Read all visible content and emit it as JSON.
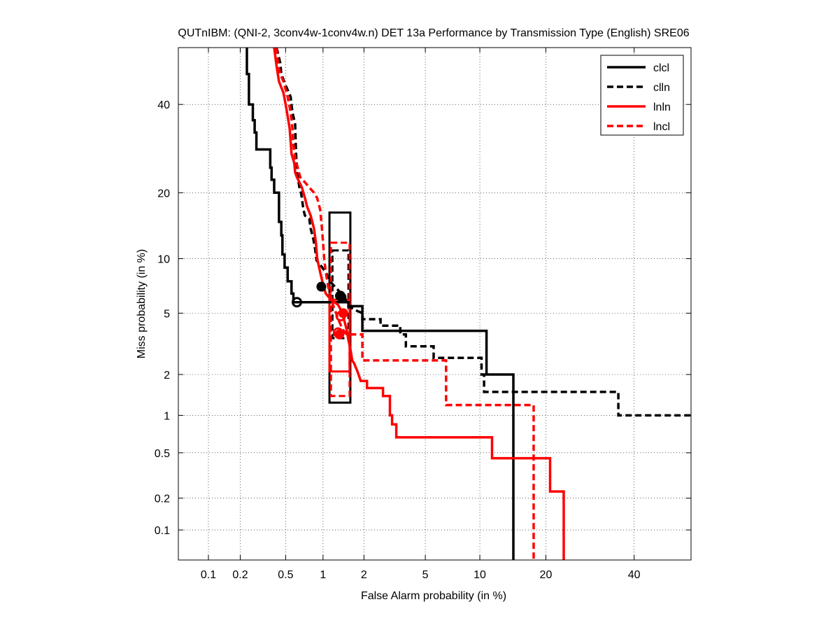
{
  "chart_data": {
    "type": "line",
    "subtype": "DET",
    "title": "QUTnIBM: (QNI-2, 3conv4w-1conv4w.n) DET 13a Performance by Transmission Type (English) SRE06",
    "xlabel": "False Alarm probability (in %)",
    "ylabel": "Miss probability (in %)",
    "xscale": "probit",
    "yscale": "probit",
    "xlim": [
      0.05,
      55
    ],
    "ylim": [
      0.05,
      55
    ],
    "grid": true,
    "legend_position": "top-right",
    "x_ticks": [
      {
        "v": 0.1,
        "label": "0.1"
      },
      {
        "v": 0.2,
        "label": "0.2"
      },
      {
        "v": 0.5,
        "label": "0.5"
      },
      {
        "v": 1,
        "label": "1"
      },
      {
        "v": 2,
        "label": "2"
      },
      {
        "v": 5,
        "label": "5"
      },
      {
        "v": 10,
        "label": "10"
      },
      {
        "v": 20,
        "label": "20"
      },
      {
        "v": 40,
        "label": "40"
      }
    ],
    "y_ticks": [
      {
        "v": 0.1,
        "label": "0.1"
      },
      {
        "v": 0.2,
        "label": "0.2"
      },
      {
        "v": 0.5,
        "label": "0.5"
      },
      {
        "v": 1,
        "label": "1"
      },
      {
        "v": 2,
        "label": "2"
      },
      {
        "v": 5,
        "label": "5"
      },
      {
        "v": 10,
        "label": "10"
      },
      {
        "v": 20,
        "label": "20"
      },
      {
        "v": 40,
        "label": "40"
      }
    ],
    "series": [
      {
        "name": "clcl",
        "color": "#000000",
        "dash": "solid",
        "points": [
          [
            0.23,
            55
          ],
          [
            0.23,
            48
          ],
          [
            0.24,
            48
          ],
          [
            0.24,
            40
          ],
          [
            0.26,
            40
          ],
          [
            0.26,
            36
          ],
          [
            0.27,
            36
          ],
          [
            0.27,
            33
          ],
          [
            0.28,
            33
          ],
          [
            0.28,
            29
          ],
          [
            0.37,
            29
          ],
          [
            0.37,
            25
          ],
          [
            0.38,
            25
          ],
          [
            0.38,
            22.5
          ],
          [
            0.4,
            22.5
          ],
          [
            0.4,
            20
          ],
          [
            0.44,
            20
          ],
          [
            0.44,
            15
          ],
          [
            0.46,
            15
          ],
          [
            0.46,
            13
          ],
          [
            0.47,
            13
          ],
          [
            0.47,
            10.5
          ],
          [
            0.49,
            10.5
          ],
          [
            0.49,
            9
          ],
          [
            0.52,
            9
          ],
          [
            0.52,
            7.6
          ],
          [
            0.56,
            7.6
          ],
          [
            0.56,
            6.5
          ],
          [
            0.58,
            6.5
          ],
          [
            0.58,
            5.8
          ],
          [
            1.55,
            5.8
          ],
          [
            1.55,
            5.5
          ],
          [
            1.95,
            5.5
          ],
          [
            1.95,
            3.9
          ],
          [
            10.8,
            3.9
          ],
          [
            10.8,
            2.0
          ],
          [
            14.5,
            2.0
          ],
          [
            14.5,
            0.05
          ]
        ],
        "operating_point": [
          0.62,
          5.8
        ],
        "min_dcf": [
          0.97,
          7.1
        ],
        "conf_box": {
          "x": [
            1.12,
            1.6
          ],
          "y": [
            1.25,
            16.5
          ]
        }
      },
      {
        "name": "clln",
        "color": "#000000",
        "dash": "dashed",
        "points": [
          [
            0.42,
            55
          ],
          [
            0.45,
            51
          ],
          [
            0.46,
            48
          ],
          [
            0.5,
            45
          ],
          [
            0.55,
            42
          ],
          [
            0.57,
            38
          ],
          [
            0.6,
            35
          ],
          [
            0.61,
            28
          ],
          [
            0.62,
            25
          ],
          [
            0.63,
            23
          ],
          [
            0.65,
            21
          ],
          [
            0.67,
            20
          ],
          [
            0.68,
            19
          ],
          [
            0.7,
            17
          ],
          [
            0.72,
            16
          ],
          [
            0.78,
            15.5
          ],
          [
            0.8,
            14
          ],
          [
            0.84,
            12.5
          ],
          [
            0.87,
            11
          ],
          [
            0.89,
            9.8
          ],
          [
            0.95,
            9.3
          ],
          [
            1.05,
            8.5
          ],
          [
            1.15,
            7.5
          ],
          [
            1.3,
            6.8
          ],
          [
            1.45,
            6.2
          ],
          [
            1.55,
            5.5
          ],
          [
            1.75,
            5.2
          ],
          [
            1.95,
            5.0
          ],
          [
            1.95,
            4.6
          ],
          [
            2.6,
            4.6
          ],
          [
            2.6,
            4.2
          ],
          [
            3.5,
            4.2
          ],
          [
            3.5,
            3.7
          ],
          [
            3.8,
            3.7
          ],
          [
            3.8,
            3.1
          ],
          [
            5.6,
            3.1
          ],
          [
            5.6,
            2.6
          ],
          [
            10.2,
            2.6
          ],
          [
            10.2,
            2.0
          ],
          [
            10.5,
            2.0
          ],
          [
            10.5,
            1.5
          ],
          [
            36,
            1.5
          ],
          [
            36,
            1.0
          ],
          [
            55,
            1.0
          ]
        ],
        "operating_point": [
          1.35,
          6.3
        ],
        "min_dcf": [
          1.38,
          6.2
        ],
        "conf_box": {
          "x": [
            1.18,
            1.55
          ],
          "y": [
            3.5,
            11
          ]
        }
      },
      {
        "name": "lnln",
        "color": "#ff0000",
        "dash": "solid",
        "points": [
          [
            0.4,
            55
          ],
          [
            0.42,
            50
          ],
          [
            0.44,
            46
          ],
          [
            0.48,
            43
          ],
          [
            0.5,
            40
          ],
          [
            0.52,
            37
          ],
          [
            0.54,
            34
          ],
          [
            0.55,
            31
          ],
          [
            0.56,
            28
          ],
          [
            0.59,
            26
          ],
          [
            0.6,
            24
          ],
          [
            0.62,
            23
          ],
          [
            0.65,
            22
          ],
          [
            0.68,
            21
          ],
          [
            0.72,
            19
          ],
          [
            0.75,
            17.5
          ],
          [
            0.8,
            16
          ],
          [
            0.85,
            14
          ],
          [
            0.88,
            12
          ],
          [
            0.9,
            10
          ],
          [
            0.95,
            8.5
          ],
          [
            1.0,
            7.3
          ],
          [
            1.05,
            6.5
          ],
          [
            1.15,
            6.0
          ],
          [
            1.3,
            5.6
          ],
          [
            1.4,
            5.0
          ],
          [
            1.5,
            4.0
          ],
          [
            1.55,
            3.4
          ],
          [
            1.6,
            3.0
          ],
          [
            1.65,
            2.5
          ],
          [
            1.7,
            2.4
          ],
          [
            1.8,
            2.1
          ],
          [
            1.9,
            1.8
          ],
          [
            2.1,
            1.8
          ],
          [
            2.1,
            1.6
          ],
          [
            2.7,
            1.6
          ],
          [
            2.7,
            1.4
          ],
          [
            3.0,
            1.4
          ],
          [
            3.0,
            1.0
          ],
          [
            3.1,
            1.0
          ],
          [
            3.1,
            0.85
          ],
          [
            3.3,
            0.85
          ],
          [
            3.3,
            0.67
          ],
          [
            11.5,
            0.67
          ],
          [
            11.5,
            0.45
          ],
          [
            20.8,
            0.45
          ],
          [
            20.8,
            0.23
          ],
          [
            23.5,
            0.23
          ],
          [
            23.5,
            0.05
          ]
        ],
        "operating_point": [
          1.36,
          4.8
        ],
        "min_dcf": [
          1.42,
          5.0
        ],
        "conf_box": {
          "x": [
            1.12,
            1.58
          ],
          "y": [
            2.1,
            6.0
          ]
        }
      },
      {
        "name": "lncl",
        "color": "#ff0000",
        "dash": "dashed",
        "points": [
          [
            0.42,
            55
          ],
          [
            0.43,
            51
          ],
          [
            0.45,
            48
          ],
          [
            0.48,
            46
          ],
          [
            0.52,
            42
          ],
          [
            0.55,
            38
          ],
          [
            0.57,
            34
          ],
          [
            0.58,
            30
          ],
          [
            0.6,
            27
          ],
          [
            0.63,
            25
          ],
          [
            0.66,
            23
          ],
          [
            0.72,
            22
          ],
          [
            0.78,
            21
          ],
          [
            0.85,
            20
          ],
          [
            0.9,
            19
          ],
          [
            0.95,
            17
          ],
          [
            0.98,
            14
          ],
          [
            1.0,
            12
          ],
          [
            1.02,
            10
          ],
          [
            1.05,
            8.5
          ],
          [
            1.1,
            7.0
          ],
          [
            1.2,
            5.5
          ],
          [
            1.32,
            4.5
          ],
          [
            1.4,
            4.0
          ],
          [
            1.5,
            3.7
          ],
          [
            1.75,
            3.7
          ],
          [
            1.95,
            3.7
          ],
          [
            1.95,
            2.5
          ],
          [
            6.6,
            2.5
          ],
          [
            6.6,
            1.2
          ],
          [
            17.8,
            1.2
          ],
          [
            17.8,
            0.05
          ]
        ],
        "operating_point": [
          1.3,
          3.8
        ],
        "min_dcf": [
          1.33,
          3.7
        ],
        "conf_box": {
          "x": [
            1.15,
            1.58
          ],
          "y": [
            1.4,
            12
          ]
        }
      }
    ]
  }
}
